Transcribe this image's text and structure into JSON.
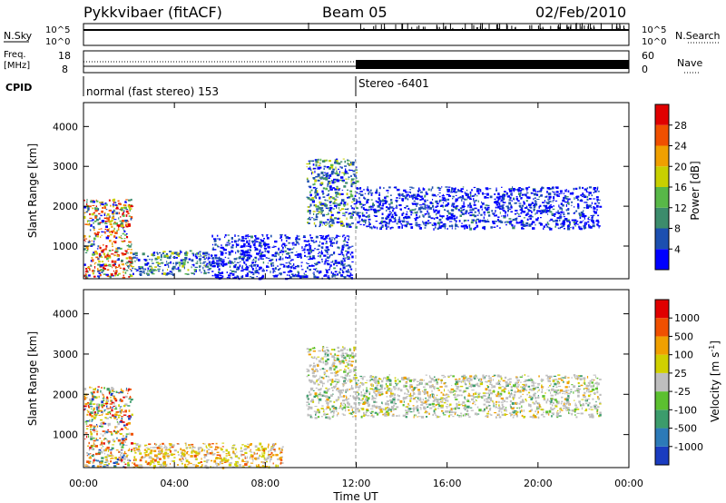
{
  "header": {
    "station": "Pykkvibaer (fitACF)",
    "beam": "Beam 05",
    "date": "02/Feb/2010"
  },
  "noise_panel": {
    "left_label": "N.Sky",
    "right_label": "N.Search",
    "ticks": [
      "10^5",
      "10^0"
    ]
  },
  "freq_panel": {
    "left_label_1": "Freq.",
    "left_label_2": "[MHz]",
    "right_label": "Nave",
    "left_ticks": [
      "18",
      "8"
    ],
    "right_ticks": [
      "60",
      "0"
    ]
  },
  "cpid": {
    "label": "CPID",
    "segments": [
      {
        "text": "normal (fast stereo) 153",
        "start_hour": 0
      },
      {
        "text": "Stereo -6401",
        "start_hour": 12
      }
    ]
  },
  "axes": {
    "x_ticks": [
      "00:00",
      "04:00",
      "08:00",
      "12:00",
      "16:00",
      "20:00",
      "00:00"
    ],
    "x_hours": [
      0,
      4,
      8,
      12,
      16,
      20,
      24
    ],
    "xlabel": "Time UT",
    "ylabel": "Slant Range [km]",
    "y_ticks": [
      "1000",
      "2000",
      "3000",
      "4000"
    ],
    "y_values": [
      1000,
      2000,
      3000,
      4000
    ],
    "ylim": [
      180,
      4600
    ]
  },
  "power_colorbar": {
    "label": "Power [dB]",
    "ticks": [
      "4",
      "8",
      "12",
      "16",
      "20",
      "24",
      "28"
    ],
    "colors": [
      "#0000ff",
      "#1c4fb0",
      "#3c8c6c",
      "#58b848",
      "#c8d000",
      "#f0a000",
      "#f05000",
      "#e00000"
    ]
  },
  "velocity_colorbar": {
    "label": "Velocity [m s",
    "label_sup": "-1",
    "label_end": "]",
    "ticks": [
      "1000",
      "500",
      "100",
      "25",
      "-25",
      "-100",
      "-500",
      "-1000"
    ],
    "colors": [
      "#1a3cc0",
      "#2c7ab8",
      "#3c9c6c",
      "#5cc030",
      "#bebebe",
      "#d0d000",
      "#f0a000",
      "#f05000",
      "#e00000"
    ]
  },
  "chart_data": {
    "type": "heatmap",
    "x_unit": "hours UT",
    "y_unit": "km",
    "power_regions": [
      {
        "t0": 0.0,
        "t1": 2.1,
        "r0": 200,
        "r1": 2200,
        "level": "high"
      },
      {
        "t0": 2.1,
        "t1": 5.6,
        "r0": 300,
        "r1": 900,
        "level": "medium"
      },
      {
        "t0": 5.6,
        "t1": 11.8,
        "r0": 200,
        "r1": 1300,
        "level": "low"
      },
      {
        "t0": 9.8,
        "t1": 12.0,
        "r0": 1500,
        "r1": 3200,
        "level": "medium"
      },
      {
        "t0": 12.0,
        "t1": 22.7,
        "r0": 1450,
        "r1": 2500,
        "level": "low"
      }
    ],
    "velocity_regions": [
      {
        "t0": 0.0,
        "t1": 2.1,
        "r0": 200,
        "r1": 2200,
        "level": "mixed"
      },
      {
        "t0": 2.1,
        "t1": 8.8,
        "r0": 200,
        "r1": 800,
        "level": "negative"
      },
      {
        "t0": 9.8,
        "t1": 12.0,
        "r0": 1400,
        "r1": 3200,
        "level": "near-zero"
      },
      {
        "t0": 12.0,
        "t1": 22.7,
        "r0": 1450,
        "r1": 2500,
        "level": "near-zero"
      }
    ],
    "mode_change_hour": 12
  }
}
